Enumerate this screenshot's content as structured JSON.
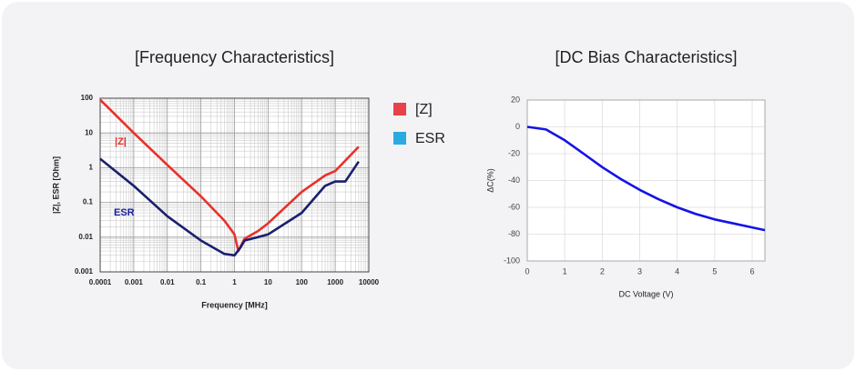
{
  "chart_data": [
    {
      "type": "line",
      "title": "[Frequency Characteristics]",
      "xlabel": "Frequency [MHz]",
      "ylabel": "|Z|, ESR [Ohm]",
      "xscale": "log",
      "yscale": "log",
      "grid": true,
      "legend": "right",
      "xlim": [
        0.0001,
        10000
      ],
      "ylim": [
        0.001,
        100
      ],
      "xticks": [
        0.0001,
        0.001,
        0.01,
        0.1,
        1,
        10,
        100,
        1000,
        10000
      ],
      "yticks": [
        0.001,
        0.01,
        0.1,
        1,
        10,
        100
      ],
      "series": [
        {
          "name": "[Z]",
          "color": "#e8312a",
          "legend_color": "#e8414a",
          "x": [
            0.0001,
            0.001,
            0.01,
            0.1,
            0.5,
            1,
            1.3,
            2,
            5,
            10,
            100,
            500,
            1000,
            5000
          ],
          "values": [
            90,
            10,
            1.2,
            0.15,
            0.03,
            0.012,
            0.004,
            0.009,
            0.015,
            0.025,
            0.2,
            0.6,
            0.8,
            4
          ]
        },
        {
          "name": "ESR",
          "color": "#1a1f6e",
          "legend_color": "#29abe2",
          "x": [
            0.0001,
            0.001,
            0.01,
            0.1,
            0.5,
            1,
            1.5,
            2,
            5,
            10,
            100,
            500,
            1000,
            2000,
            5000
          ],
          "values": [
            1.8,
            0.3,
            0.04,
            0.008,
            0.0033,
            0.003,
            0.005,
            0.008,
            0.01,
            0.012,
            0.05,
            0.3,
            0.4,
            0.4,
            1.5
          ]
        }
      ],
      "annotations": [
        {
          "text": "|Z|",
          "color": "#e8312a"
        },
        {
          "text": "ESR",
          "color": "#1a1f9e"
        }
      ]
    },
    {
      "type": "line",
      "title": "[DC Bias Characteristics]",
      "xlabel": "DC Voltage (V)",
      "ylabel": "ΔC(%)",
      "grid": true,
      "xlim": [
        0,
        6.34
      ],
      "ylim": [
        -100,
        20
      ],
      "xticks": [
        0,
        1,
        2,
        3,
        4,
        5,
        6
      ],
      "yticks": [
        20,
        0,
        -20,
        -40,
        -60,
        -80,
        -100
      ],
      "series": [
        {
          "color": "#1414e6",
          "x": [
            0,
            0.5,
            1,
            1.5,
            2,
            2.5,
            3,
            3.5,
            4,
            4.5,
            5,
            5.5,
            6,
            6.34
          ],
          "values": [
            0,
            -2,
            -10,
            -20,
            -30,
            -39,
            -47,
            -54,
            -60,
            -65,
            -69,
            -72,
            -75,
            -77
          ]
        }
      ]
    }
  ]
}
